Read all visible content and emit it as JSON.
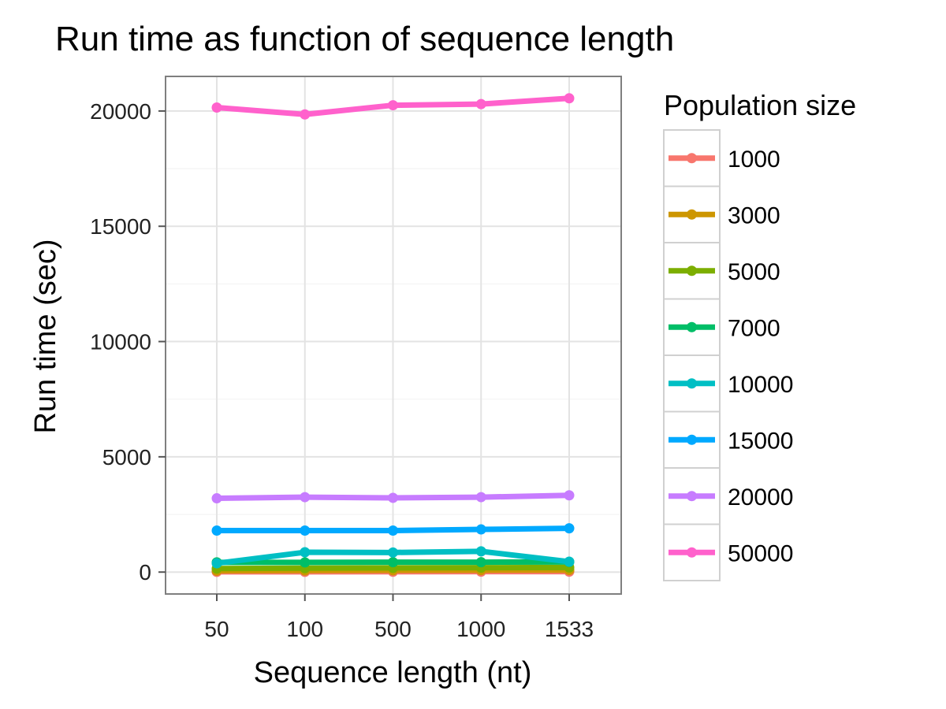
{
  "chart_data": {
    "type": "line",
    "title": "Run time as function of sequence length",
    "xlabel": "Sequence length (nt)",
    "ylabel": "Run time (sec)",
    "categories": [
      "50",
      "100",
      "500",
      "1000",
      "1533"
    ],
    "ylim": [
      -950,
      21500
    ],
    "yticks": [
      0,
      5000,
      10000,
      15000,
      20000
    ],
    "grid": true,
    "legend": {
      "title": "Population size",
      "placement": "right"
    },
    "series": [
      {
        "name": "1000",
        "color": "#F8766D",
        "values": [
          10,
          12,
          15,
          18,
          20
        ]
      },
      {
        "name": "3000",
        "color": "#CD9600",
        "values": [
          60,
          70,
          80,
          85,
          90
        ]
      },
      {
        "name": "5000",
        "color": "#7CAE00",
        "values": [
          150,
          170,
          180,
          190,
          200
        ]
      },
      {
        "name": "7000",
        "color": "#00BE67",
        "values": [
          420,
          420,
          430,
          430,
          440
        ]
      },
      {
        "name": "10000",
        "color": "#00BFC4",
        "values": [
          380,
          860,
          850,
          900,
          450
        ]
      },
      {
        "name": "15000",
        "color": "#00A9FF",
        "values": [
          1800,
          1800,
          1800,
          1850,
          1900
        ]
      },
      {
        "name": "20000",
        "color": "#C77CFF",
        "values": [
          3200,
          3250,
          3220,
          3250,
          3330
        ]
      },
      {
        "name": "50000",
        "color": "#FF61CC",
        "values": [
          20150,
          19850,
          20250,
          20300,
          20550
        ]
      }
    ]
  }
}
